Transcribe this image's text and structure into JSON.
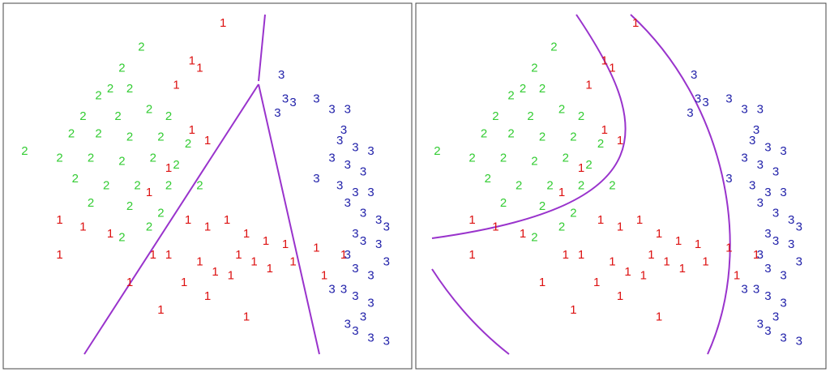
{
  "chart_data": [
    {
      "type": "scatter",
      "xlim": [
        0,
        100
      ],
      "ylim": [
        0,
        100
      ],
      "series": [
        {
          "name": "2",
          "color": "#33cc33",
          "x": [
            33,
            28,
            25,
            22,
            30,
            18,
            27,
            35,
            40,
            15,
            22,
            30,
            38,
            45,
            12,
            20,
            28,
            36,
            42,
            16,
            24,
            32,
            40,
            48,
            20,
            30,
            38,
            3,
            28,
            35
          ],
          "y": [
            90,
            84,
            78,
            76,
            78,
            70,
            70,
            72,
            70,
            65,
            65,
            64,
            64,
            62,
            58,
            58,
            57,
            58,
            56,
            52,
            50,
            50,
            50,
            50,
            45,
            44,
            42,
            60,
            35,
            38
          ]
        },
        {
          "name": "1",
          "color": "#dd1111",
          "x": [
            54,
            46,
            48,
            42,
            46,
            50,
            40,
            35,
            12,
            18,
            25,
            45,
            50,
            55,
            60,
            65,
            70,
            58,
            62,
            48,
            52,
            56,
            66,
            72,
            78,
            40,
            44,
            50,
            38,
            60,
            30,
            12,
            80,
            85,
            36
          ],
          "y": [
            97,
            86,
            84,
            79,
            66,
            63,
            55,
            48,
            40,
            38,
            36,
            40,
            38,
            40,
            36,
            34,
            33,
            30,
            28,
            28,
            25,
            24,
            26,
            28,
            32,
            30,
            22,
            18,
            14,
            12,
            22,
            30,
            24,
            30,
            30
          ]
        },
        {
          "name": "3",
          "color": "#2222aa",
          "x": [
            69,
            70,
            72,
            68,
            78,
            82,
            86,
            85,
            84,
            88,
            92,
            82,
            86,
            90,
            78,
            84,
            88,
            92,
            86,
            90,
            94,
            96,
            88,
            90,
            94,
            86,
            88,
            92,
            96,
            85,
            88,
            92,
            86,
            90,
            92,
            96,
            88,
            82
          ],
          "y": [
            82,
            75,
            74,
            71,
            75,
            72,
            72,
            66,
            63,
            61,
            60,
            58,
            56,
            54,
            52,
            50,
            48,
            48,
            45,
            42,
            40,
            38,
            36,
            34,
            33,
            30,
            26,
            24,
            28,
            20,
            18,
            16,
            10,
            12,
            6,
            5,
            8,
            20
          ]
        }
      ]
    },
    {
      "type": "scatter",
      "xlim": [
        0,
        100
      ],
      "ylim": [
        0,
        100
      ],
      "series": [
        {
          "name": "2",
          "color": "#33cc33",
          "x": [
            33,
            28,
            25,
            22,
            30,
            18,
            27,
            35,
            40,
            15,
            22,
            30,
            38,
            45,
            12,
            20,
            28,
            36,
            42,
            16,
            24,
            32,
            40,
            48,
            20,
            30,
            38,
            3,
            28,
            35
          ],
          "y": [
            90,
            84,
            78,
            76,
            78,
            70,
            70,
            72,
            70,
            65,
            65,
            64,
            64,
            62,
            58,
            58,
            57,
            58,
            56,
            52,
            50,
            50,
            50,
            50,
            45,
            44,
            42,
            60,
            35,
            38
          ]
        },
        {
          "name": "1",
          "color": "#dd1111",
          "x": [
            54,
            46,
            48,
            42,
            46,
            50,
            40,
            35,
            12,
            18,
            25,
            45,
            50,
            55,
            60,
            65,
            70,
            58,
            62,
            48,
            52,
            56,
            66,
            72,
            78,
            40,
            44,
            50,
            38,
            60,
            30,
            12,
            80,
            85,
            36
          ],
          "y": [
            97,
            86,
            84,
            79,
            66,
            63,
            55,
            48,
            40,
            38,
            36,
            40,
            38,
            40,
            36,
            34,
            33,
            30,
            28,
            28,
            25,
            24,
            26,
            28,
            32,
            30,
            22,
            18,
            14,
            12,
            22,
            30,
            24,
            30,
            30
          ]
        },
        {
          "name": "3",
          "color": "#2222aa",
          "x": [
            69,
            70,
            72,
            68,
            78,
            82,
            86,
            85,
            84,
            88,
            92,
            82,
            86,
            90,
            78,
            84,
            88,
            92,
            86,
            90,
            94,
            96,
            88,
            90,
            94,
            86,
            88,
            92,
            96,
            85,
            88,
            92,
            86,
            90,
            92,
            96,
            88,
            82
          ],
          "y": [
            82,
            75,
            74,
            71,
            75,
            72,
            72,
            66,
            63,
            61,
            60,
            58,
            56,
            54,
            52,
            50,
            48,
            48,
            45,
            42,
            40,
            38,
            36,
            34,
            33,
            30,
            26,
            24,
            28,
            20,
            18,
            16,
            10,
            12,
            6,
            5,
            8,
            20
          ]
        }
      ]
    }
  ]
}
